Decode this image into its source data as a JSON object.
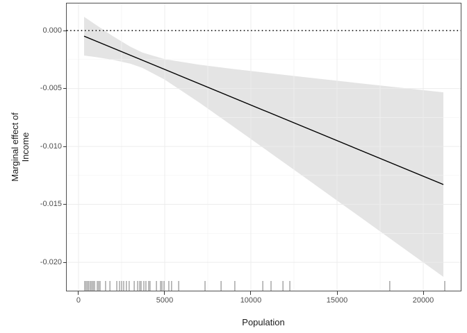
{
  "chart_data": {
    "type": "line",
    "title": "",
    "xlabel": "Population",
    "ylabel": "Marginal effect of Income",
    "ylabel_lines": [
      "Marginal effect of",
      "Income"
    ],
    "legend": "none",
    "grid": true,
    "x_domain": [
      -685,
      22177
    ],
    "y_domain": [
      -0.02245,
      0.00234
    ],
    "x_ticks": [
      {
        "value": 0,
        "label": "0"
      },
      {
        "value": 5000,
        "label": "5000"
      },
      {
        "value": 10000,
        "label": "10000"
      },
      {
        "value": 15000,
        "label": "15000"
      },
      {
        "value": 20000,
        "label": "20000"
      }
    ],
    "x_minor_ticks": [
      2500,
      7500,
      12500,
      17500
    ],
    "y_ticks": [
      {
        "value": 0,
        "label": "0.000"
      },
      {
        "value": -0.005,
        "label": "-0.005"
      },
      {
        "value": -0.01,
        "label": "-0.010"
      },
      {
        "value": -0.015,
        "label": "-0.015"
      },
      {
        "value": -0.02,
        "label": "-0.020"
      }
    ],
    "y_minor_ticks": [
      -0.0025,
      -0.0075,
      -0.0125,
      -0.0175
    ],
    "reference_line": {
      "y": 0,
      "style": "dotted"
    },
    "fit_line": {
      "points": [
        [
          323,
          -0.00048
        ],
        [
          21169,
          -0.01329
        ]
      ]
    },
    "ribbon": [
      [
        323,
        -0.00215,
        0.00119
      ],
      [
        1000,
        -0.00229,
        0.00051
      ],
      [
        2000,
        -0.00253,
        -0.00049
      ],
      [
        3000,
        -0.00285,
        -0.00139
      ],
      [
        3710,
        -0.00322,
        -0.0019
      ],
      [
        5000,
        -0.00423,
        -0.00247
      ],
      [
        7000,
        -0.00621,
        -0.00295
      ],
      [
        9000,
        -0.0083,
        -0.00332
      ],
      [
        11000,
        -0.01042,
        -0.00366
      ],
      [
        13000,
        -0.01254,
        -0.004
      ],
      [
        15000,
        -0.01467,
        -0.00433
      ],
      [
        17000,
        -0.0168,
        -0.00466
      ],
      [
        19000,
        -0.01894,
        -0.00498
      ],
      [
        21169,
        -0.02125,
        -0.00533
      ]
    ],
    "rug_x": [
      360,
      440,
      520,
      600,
      690,
      770,
      850,
      930,
      1090,
      1170,
      1250,
      1570,
      1820,
      2220,
      2380,
      2500,
      2620,
      2780,
      2940,
      3230,
      3430,
      3550,
      3630,
      3790,
      3910,
      4070,
      4150,
      4520,
      4760,
      4840,
      4960,
      5240,
      5400,
      5810,
      7340,
      8270,
      9070,
      10690,
      11170,
      11860,
      12260,
      18060,
      21250
    ],
    "colors": {
      "background": "#ffffff",
      "fit_line": "#000000",
      "ribbon": "#e4e4e4",
      "grid_major": "#ececec",
      "grid_minor": "#f3f3f3",
      "panel_border": "#4f4f4f",
      "tick_label": "#4d4d4d",
      "axis_title": "#1a1a1a",
      "rug": "#4d4d4d",
      "reference_line": "#000000"
    }
  }
}
